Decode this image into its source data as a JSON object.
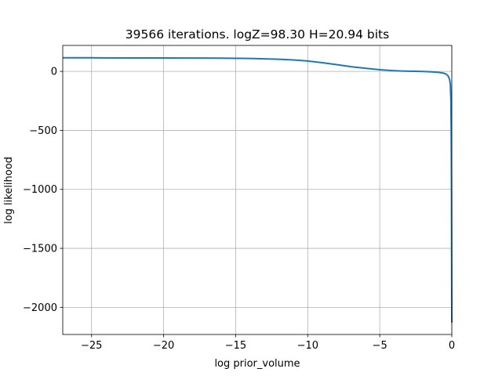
{
  "chart_data": {
    "type": "line",
    "title": "39566 iterations. logZ=98.30 H=20.94 bits",
    "xlabel": "log prior_volume",
    "ylabel": "log likelihood",
    "xlim": [
      -27,
      0
    ],
    "ylim": [
      -2230,
      220
    ],
    "x_ticks": [
      -25,
      -20,
      -15,
      -10,
      -5,
      0
    ],
    "x_tick_labels": [
      "−25",
      "−20",
      "−15",
      "−10",
      "−5",
      "0"
    ],
    "y_ticks": [
      0,
      -500,
      -1000,
      -1500,
      -2000
    ],
    "y_tick_labels": [
      "0",
      "−500",
      "−1000",
      "−1500",
      "−2000"
    ],
    "grid": true,
    "series": [
      {
        "color": "#1f77b4",
        "x": [
          -27,
          -25,
          -22,
          -20,
          -18,
          -16,
          -14,
          -12,
          -11,
          -10,
          -9,
          -8,
          -7,
          -6,
          -5,
          -4,
          -3.5,
          -3,
          -2.5,
          -2,
          -1.5,
          -1,
          -0.6,
          -0.4,
          -0.25,
          -0.15,
          -0.1,
          -0.06,
          -0.04,
          -0.02,
          -0.01,
          0
        ],
        "y": [
          115,
          115,
          114,
          114,
          113,
          112,
          110,
          103,
          97,
          88,
          74,
          57,
          40,
          27,
          14,
          6,
          3,
          2,
          1,
          -1,
          -3,
          -7,
          -14,
          -22,
          -40,
          -70,
          -110,
          -250,
          -500,
          -1000,
          -1600,
          -2130
        ]
      }
    ]
  }
}
